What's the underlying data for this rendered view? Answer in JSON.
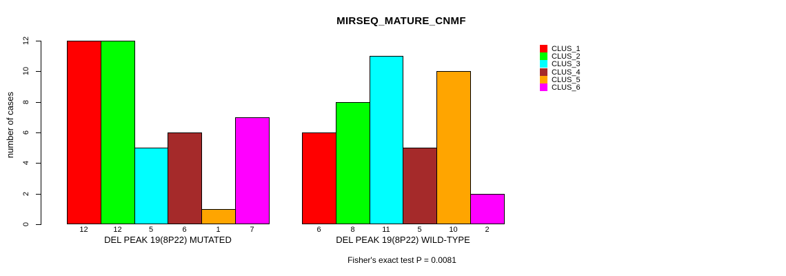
{
  "chart_data": {
    "type": "bar",
    "title": "MIRSEQ_MATURE_CNMF",
    "ylabel": "number of cases",
    "xlabel": "",
    "ylim": [
      0,
      12
    ],
    "yticks": [
      0,
      2,
      4,
      6,
      8,
      10,
      12
    ],
    "grid": false,
    "legend_position": "right-outside",
    "bar_border_color": "#000000",
    "value_labels_shown": true,
    "categories": [
      "DEL PEAK 19(8P22) MUTATED",
      "DEL PEAK 19(8P22) WILD-TYPE"
    ],
    "series": [
      {
        "name": "CLUS_1",
        "color": "#FF0000",
        "values": [
          12,
          6
        ]
      },
      {
        "name": "CLUS_2",
        "color": "#00FF00",
        "values": [
          12,
          8
        ]
      },
      {
        "name": "CLUS_3",
        "color": "#00FFFF",
        "values": [
          5,
          11
        ]
      },
      {
        "name": "CLUS_4",
        "color": "#A52A2A",
        "values": [
          6,
          5
        ]
      },
      {
        "name": "CLUS_5",
        "color": "#FFA500",
        "values": [
          1,
          10
        ]
      },
      {
        "name": "CLUS_6",
        "color": "#FF00FF",
        "values": [
          7,
          2
        ]
      }
    ],
    "annotation": "Fisher's exact test P = 0.0081"
  }
}
